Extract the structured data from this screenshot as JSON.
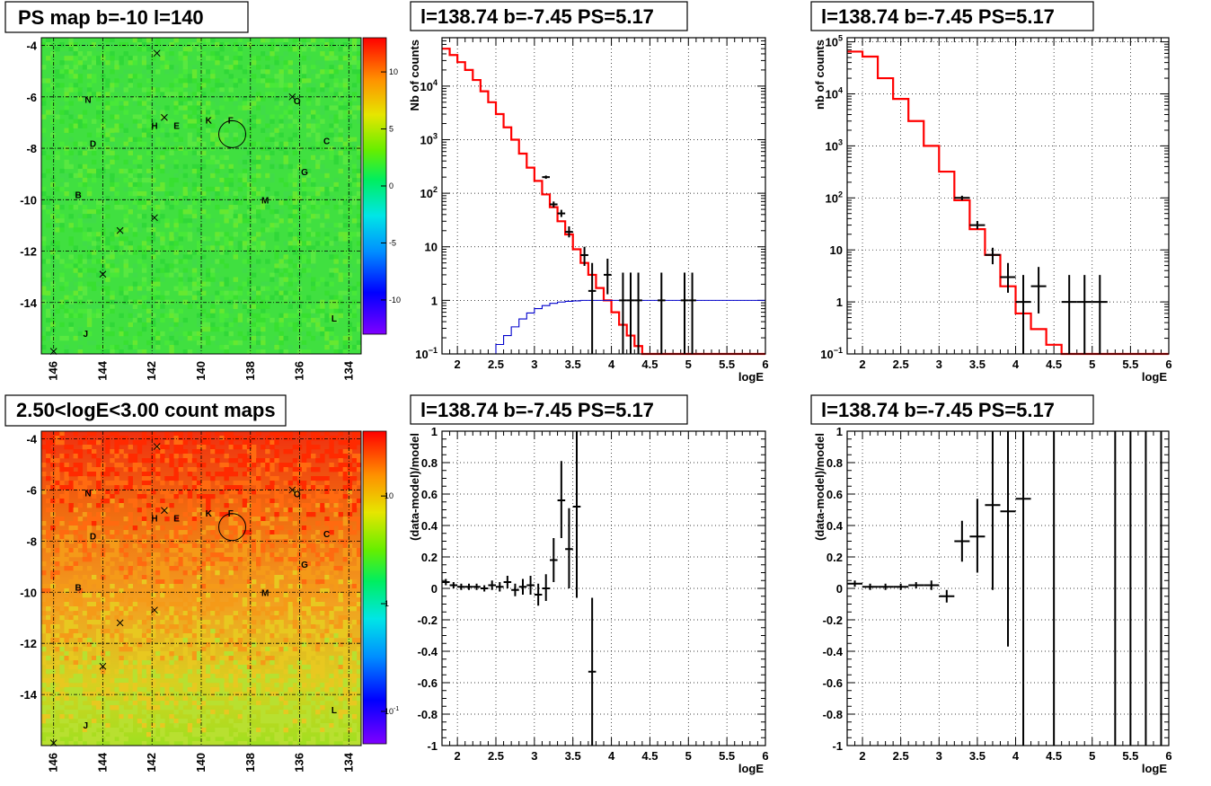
{
  "titles": {
    "map_top": "PS map b=-10 l=140",
    "map_bottom": "2.50<logE<3.00 count maps",
    "spec_left": "l=138.74 b=-7.45 PS=5.17",
    "spec_right": "l=138.74 b=-7.45 PS=5.17",
    "resid_left": "l=138.74 b=-7.45 PS=5.17",
    "resid_right": "l=138.74 b=-7.45 PS=5.17"
  },
  "colors": {
    "data": "#000000",
    "model": "#ff0000",
    "background_model": "#0000cc",
    "grid": "#000000"
  },
  "map_axes": {
    "x_ticks": [
      "146",
      "144",
      "142",
      "140",
      "138",
      "136",
      "134"
    ],
    "y_ticks": [
      "-4",
      "-6",
      "-8",
      "-10",
      "-12",
      "-14"
    ]
  },
  "map_labels": [
    {
      "text": "N",
      "l": 144.6,
      "b": -6.1
    },
    {
      "text": "O",
      "l": 136.1,
      "b": -6.15
    },
    {
      "text": "H",
      "l": 141.9,
      "b": -7.1
    },
    {
      "text": "E",
      "l": 141.0,
      "b": -7.1
    },
    {
      "text": "K",
      "l": 139.7,
      "b": -6.9
    },
    {
      "text": "F",
      "l": 138.8,
      "b": -6.9
    },
    {
      "text": "D",
      "l": 144.4,
      "b": -7.8
    },
    {
      "text": "C",
      "l": 134.9,
      "b": -7.7
    },
    {
      "text": "G",
      "l": 135.8,
      "b": -8.9
    },
    {
      "text": "B",
      "l": 145.0,
      "b": -9.8
    },
    {
      "text": "M",
      "l": 137.4,
      "b": -10.0
    },
    {
      "text": "L",
      "l": 134.6,
      "b": -14.6
    },
    {
      "text": "J",
      "l": 144.7,
      "b": -15.2
    }
  ],
  "map_crosses": [
    {
      "l": 141.8,
      "b": -4.3
    },
    {
      "l": 141.5,
      "b": -6.8
    },
    {
      "l": 136.3,
      "b": -6.0
    },
    {
      "l": 141.9,
      "b": -10.7
    },
    {
      "l": 143.3,
      "b": -11.2
    },
    {
      "l": 144.0,
      "b": -12.9
    },
    {
      "l": 146.0,
      "b": -15.9
    }
  ],
  "ps_circle": {
    "l": 138.74,
    "b": -7.45
  },
  "colorbar_top": {
    "ticks": [
      "10",
      "5",
      "0",
      "-5",
      "-10"
    ]
  },
  "colorbar_bottom": {
    "ticks": [
      "10",
      "1",
      "10⁻¹"
    ]
  },
  "chart_data": [
    {
      "type": "heatmap",
      "title": "PS map b=-10 l=140",
      "xlim": [
        146.5,
        133.5
      ],
      "ylim": [
        -16,
        -3.7
      ],
      "zlim": [
        -13,
        13
      ],
      "description": "uniform green field (values near 0)"
    },
    {
      "type": "heatmap",
      "title": "2.50<logE<3.00 count maps",
      "xlim": [
        146.5,
        133.5
      ],
      "ylim": [
        -16,
        -3.7
      ],
      "zscale": "log",
      "zlim": [
        0.05,
        40
      ]
    },
    {
      "type": "line",
      "title": "l=138.74 b=-7.45 PS=5.17",
      "xlabel": "logE",
      "ylabel": "Nb of counts",
      "yscale": "log",
      "xlim": [
        1.8,
        6
      ],
      "ylim": [
        0.1,
        80000
      ],
      "x_ticks": [
        "2",
        "2.5",
        "3",
        "3.5",
        "4",
        "4.5",
        "5",
        "5.5",
        "6"
      ],
      "y_ticks": [
        "10⁻¹",
        "1",
        "10",
        "10²",
        "10³",
        "10⁴"
      ],
      "grid": true,
      "series": [
        {
          "kind": "step",
          "color": "red",
          "bin_width": 0.1,
          "x": [
            1.8,
            1.9,
            2.0,
            2.1,
            2.2,
            2.3,
            2.4,
            2.5,
            2.6,
            2.7,
            2.8,
            2.9,
            3.0,
            3.1,
            3.2,
            3.3,
            3.4,
            3.5,
            3.6,
            3.7,
            3.8,
            3.9,
            4.0,
            4.1,
            4.2,
            4.3,
            4.4,
            4.5,
            4.6,
            4.7,
            4.8,
            4.9,
            5.0,
            5.1,
            5.2,
            5.3,
            5.4,
            5.5,
            5.6,
            5.7,
            5.8,
            5.9
          ],
          "values": [
            50000,
            38000,
            28000,
            20000,
            13000,
            8000,
            5000,
            3000,
            1700,
            1000,
            550,
            300,
            170,
            95,
            55,
            30,
            17,
            9,
            5,
            3,
            1.7,
            1.0,
            0.6,
            0.35,
            0.22,
            0.14,
            0.1,
            0.1,
            0.1,
            0.1,
            0.1,
            0.1,
            0.1,
            0.1,
            0.1,
            0.1,
            0.1,
            0.1,
            0.1,
            0.1,
            0.1,
            0.1
          ]
        },
        {
          "kind": "step",
          "color": "blue",
          "bin_width": 0.1,
          "x": [
            2.4,
            2.5,
            2.6,
            2.7,
            2.8,
            2.9,
            3.0,
            3.1,
            3.2,
            3.3,
            3.4,
            3.5,
            3.6,
            3.7,
            3.8,
            3.9,
            4.0,
            4.1,
            4.2,
            4.3,
            4.4,
            4.5,
            4.6,
            4.7,
            4.8,
            4.9,
            5.0,
            5.1,
            5.2,
            5.3,
            5.4,
            5.5,
            5.6,
            5.7,
            5.8,
            5.9
          ],
          "values": [
            0.1,
            0.15,
            0.22,
            0.32,
            0.45,
            0.58,
            0.7,
            0.8,
            0.88,
            0.93,
            0.96,
            0.98,
            1,
            1,
            1,
            1,
            1,
            1,
            1,
            1,
            1,
            1,
            1,
            1,
            1,
            1,
            1,
            1,
            1,
            1,
            1,
            1,
            1,
            1,
            1,
            1
          ]
        },
        {
          "kind": "errorbars",
          "color": "black",
          "points": [
            {
              "x": 3.15,
              "y": 200,
              "xerr": 0.05,
              "lo": 186,
              "hi": 214
            },
            {
              "x": 3.25,
              "y": 62,
              "xerr": 0.05,
              "lo": 54,
              "hi": 70
            },
            {
              "x": 3.35,
              "y": 42,
              "xerr": 0.05,
              "lo": 36,
              "hi": 49
            },
            {
              "x": 3.45,
              "y": 19,
              "xerr": 0.05,
              "lo": 15,
              "hi": 24
            },
            {
              "x": 3.65,
              "y": 7,
              "xerr": 0.05,
              "lo": 4.4,
              "hi": 10
            },
            {
              "x": 3.75,
              "y": 1.5,
              "xerr": 0.05,
              "lo": 0.1,
              "hi": 5
            },
            {
              "x": 3.95,
              "y": 3,
              "xerr": 0.05,
              "lo": 1.3,
              "hi": 6
            },
            {
              "x": 4.15,
              "y": 1,
              "xerr": 0.05,
              "lo": 0.1,
              "hi": 3.3
            },
            {
              "x": 4.25,
              "y": 1,
              "xerr": 0.05,
              "lo": 0.1,
              "hi": 3.3
            },
            {
              "x": 4.35,
              "y": 1,
              "xerr": 0.05,
              "lo": 0.1,
              "hi": 3.3
            },
            {
              "x": 4.65,
              "y": 1,
              "xerr": 0.05,
              "lo": 0.1,
              "hi": 3.3
            },
            {
              "x": 4.95,
              "y": 1,
              "xerr": 0.05,
              "lo": 0.1,
              "hi": 3.3
            },
            {
              "x": 5.05,
              "y": 1,
              "xerr": 0.05,
              "lo": 0.1,
              "hi": 3.3
            }
          ]
        }
      ]
    },
    {
      "type": "line",
      "title": "l=138.74 b=-7.45 PS=5.17",
      "xlabel": "logE",
      "ylabel": "nb of counts",
      "yscale": "log",
      "xlim": [
        1.8,
        6
      ],
      "ylim": [
        0.1,
        120000
      ],
      "x_ticks": [
        "2",
        "2.5",
        "3",
        "3.5",
        "4",
        "4.5",
        "5",
        "5.5",
        "6"
      ],
      "y_ticks": [
        "10⁻¹",
        "1",
        "10",
        "10²",
        "10³",
        "10⁴",
        "10⁵"
      ],
      "grid": true,
      "series": [
        {
          "kind": "step",
          "color": "red",
          "bin_width": 0.2,
          "x": [
            1.8,
            2.0,
            2.2,
            2.4,
            2.6,
            2.8,
            3.0,
            3.2,
            3.4,
            3.6,
            3.8,
            4.0,
            4.2,
            4.4,
            4.6,
            4.8,
            5.0,
            5.2,
            5.4,
            5.6,
            5.8
          ],
          "values": [
            65000,
            52000,
            20000,
            8000,
            3000,
            1000,
            320,
            90,
            25,
            8,
            2,
            0.6,
            0.3,
            0.15,
            0.1,
            0.1,
            0.1,
            0.1,
            0.1,
            0.1,
            0.1
          ]
        },
        {
          "kind": "errorbars",
          "color": "black",
          "points": [
            {
              "x": 3.3,
              "y": 100,
              "xerr": 0.1,
              "lo": 90,
              "hi": 110
            },
            {
              "x": 3.5,
              "y": 30,
              "xerr": 0.1,
              "lo": 25,
              "hi": 36
            },
            {
              "x": 3.7,
              "y": 8,
              "xerr": 0.1,
              "lo": 5.3,
              "hi": 11
            },
            {
              "x": 3.9,
              "y": 3,
              "xerr": 0.1,
              "lo": 1.5,
              "hi": 5.6
            },
            {
              "x": 4.1,
              "y": 1,
              "xerr": 0.1,
              "lo": 0.1,
              "hi": 3.3
            },
            {
              "x": 4.3,
              "y": 2,
              "xerr": 0.1,
              "lo": 0.6,
              "hi": 4.7
            },
            {
              "x": 4.7,
              "y": 1,
              "xerr": 0.1,
              "lo": 0.1,
              "hi": 3.3
            },
            {
              "x": 4.9,
              "y": 1,
              "xerr": 0.1,
              "lo": 0.1,
              "hi": 3.3
            },
            {
              "x": 5.1,
              "y": 1,
              "xerr": 0.1,
              "lo": 0.1,
              "hi": 3.3
            }
          ]
        }
      ]
    },
    {
      "type": "scatter",
      "title": "l=138.74 b=-7.45 PS=5.17",
      "xlabel": "logE",
      "ylabel": "(data-model)/model",
      "xlim": [
        1.8,
        6
      ],
      "ylim": [
        -1,
        1
      ],
      "x_ticks": [
        "2",
        "2.5",
        "3",
        "3.5",
        "4",
        "4.5",
        "5",
        "5.5",
        "6"
      ],
      "y_ticks": [
        "1",
        "0.8",
        "0.6",
        "0.4",
        "0.2",
        "0",
        "-0.2",
        "-0.4",
        "-0.6",
        "-0.8",
        "-1"
      ],
      "grid": true,
      "series": [
        {
          "kind": "errorbars",
          "color": "black",
          "points": [
            {
              "x": 1.85,
              "y": 0.04,
              "xerr": 0.05,
              "lo": 0.02,
              "hi": 0.06
            },
            {
              "x": 1.95,
              "y": 0.02,
              "xerr": 0.05,
              "lo": 0.0,
              "hi": 0.04
            },
            {
              "x": 2.05,
              "y": 0.01,
              "xerr": 0.05,
              "lo": -0.01,
              "hi": 0.03
            },
            {
              "x": 2.15,
              "y": 0.01,
              "xerr": 0.05,
              "lo": -0.01,
              "hi": 0.03
            },
            {
              "x": 2.25,
              "y": 0.01,
              "xerr": 0.05,
              "lo": -0.01,
              "hi": 0.03
            },
            {
              "x": 2.35,
              "y": 0.0,
              "xerr": 0.05,
              "lo": -0.02,
              "hi": 0.02
            },
            {
              "x": 2.45,
              "y": 0.02,
              "xerr": 0.05,
              "lo": -0.01,
              "hi": 0.05
            },
            {
              "x": 2.55,
              "y": 0.01,
              "xerr": 0.05,
              "lo": -0.02,
              "hi": 0.04
            },
            {
              "x": 2.65,
              "y": 0.04,
              "xerr": 0.05,
              "lo": 0.0,
              "hi": 0.08
            },
            {
              "x": 2.75,
              "y": -0.01,
              "xerr": 0.05,
              "lo": -0.05,
              "hi": 0.03
            },
            {
              "x": 2.85,
              "y": 0.01,
              "xerr": 0.05,
              "lo": -0.04,
              "hi": 0.06
            },
            {
              "x": 2.95,
              "y": 0.02,
              "xerr": 0.05,
              "lo": -0.04,
              "hi": 0.08
            },
            {
              "x": 3.05,
              "y": -0.04,
              "xerr": 0.05,
              "lo": -0.11,
              "hi": 0.03
            },
            {
              "x": 3.15,
              "y": 0.0,
              "xerr": 0.05,
              "lo": -0.08,
              "hi": 0.09
            },
            {
              "x": 3.25,
              "y": 0.18,
              "xerr": 0.05,
              "lo": 0.04,
              "hi": 0.32
            },
            {
              "x": 3.35,
              "y": 0.56,
              "xerr": 0.05,
              "lo": 0.32,
              "hi": 0.81
            },
            {
              "x": 3.45,
              "y": 0.25,
              "xerr": 0.05,
              "lo": 0.0,
              "hi": 0.51
            },
            {
              "x": 3.55,
              "y": 0.52,
              "xerr": 0.05,
              "lo": -0.06,
              "hi": 1.0
            },
            {
              "x": 3.75,
              "y": -0.53,
              "xerr": 0.05,
              "lo": -1.0,
              "hi": -0.06
            }
          ]
        }
      ]
    },
    {
      "type": "scatter",
      "title": "l=138.74 b=-7.45 PS=5.17",
      "xlabel": "logE",
      "ylabel": "(data-model)/model",
      "xlim": [
        1.8,
        6
      ],
      "ylim": [
        -1,
        1
      ],
      "x_ticks": [
        "2",
        "2.5",
        "3",
        "3.5",
        "4",
        "4.5",
        "5",
        "5.5",
        "6"
      ],
      "y_ticks": [
        "1",
        "0.8",
        "0.6",
        "0.4",
        "0.2",
        "0",
        "-0.2",
        "-0.4",
        "-0.6",
        "-0.8",
        "-1"
      ],
      "grid": true,
      "series": [
        {
          "kind": "errorbars",
          "color": "black",
          "points": [
            {
              "x": 1.9,
              "y": 0.03,
              "xerr": 0.1,
              "lo": 0.01,
              "hi": 0.05
            },
            {
              "x": 2.1,
              "y": 0.01,
              "xerr": 0.1,
              "lo": -0.01,
              "hi": 0.03
            },
            {
              "x": 2.3,
              "y": 0.01,
              "xerr": 0.1,
              "lo": -0.01,
              "hi": 0.03
            },
            {
              "x": 2.5,
              "y": 0.01,
              "xerr": 0.1,
              "lo": -0.01,
              "hi": 0.03
            },
            {
              "x": 2.7,
              "y": 0.02,
              "xerr": 0.1,
              "lo": 0.0,
              "hi": 0.04
            },
            {
              "x": 2.9,
              "y": 0.02,
              "xerr": 0.1,
              "lo": -0.01,
              "hi": 0.05
            },
            {
              "x": 3.1,
              "y": -0.05,
              "xerr": 0.1,
              "lo": -0.09,
              "hi": -0.01
            },
            {
              "x": 3.3,
              "y": 0.3,
              "xerr": 0.1,
              "lo": 0.17,
              "hi": 0.43
            },
            {
              "x": 3.5,
              "y": 0.33,
              "xerr": 0.1,
              "lo": 0.1,
              "hi": 0.57
            },
            {
              "x": 3.7,
              "y": 0.53,
              "xerr": 0.1,
              "lo": -0.01,
              "hi": 1.0
            },
            {
              "x": 3.9,
              "y": 0.49,
              "xerr": 0.1,
              "lo": -0.37,
              "hi": 1.0
            },
            {
              "x": 4.1,
              "y": 0.57,
              "xerr": 0.1,
              "lo": -1.0,
              "hi": 1.0
            },
            {
              "x": 4.5,
              "y": 0.0,
              "xerr": 0.0,
              "lo": -1.0,
              "hi": 1.0
            },
            {
              "x": 5.3,
              "y": 0.0,
              "xerr": 0.0,
              "lo": -1.0,
              "hi": 1.0
            },
            {
              "x": 5.5,
              "y": 0.0,
              "xerr": 0.0,
              "lo": -1.0,
              "hi": 1.0
            },
            {
              "x": 5.7,
              "y": 0.0,
              "xerr": 0.0,
              "lo": -1.0,
              "hi": 1.0
            },
            {
              "x": 5.9,
              "y": 0.0,
              "xerr": 0.0,
              "lo": -1.0,
              "hi": 1.0
            }
          ]
        }
      ]
    }
  ]
}
